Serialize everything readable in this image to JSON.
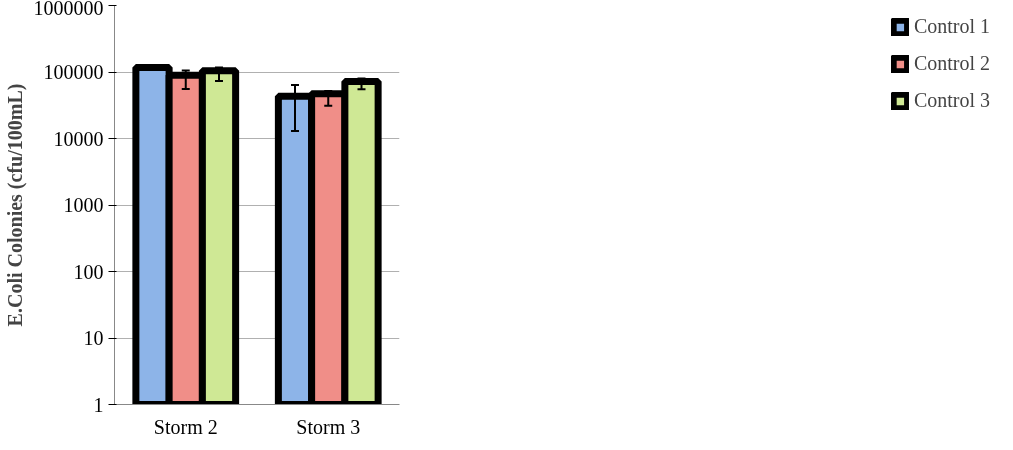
{
  "chart_data": {
    "type": "bar",
    "ylabel": "E.Coli Colonies (cfu/100mL)",
    "categories": [
      "Storm 2",
      "Storm 3"
    ],
    "series": [
      {
        "name": "Control 1",
        "color": "#8db4e8",
        "values": [
          117000,
          43000
        ],
        "errors": [
          [
            110000,
            124000
          ],
          [
            13000,
            63500
          ]
        ]
      },
      {
        "name": "Control 2",
        "color": "#f08e88",
        "values": [
          89000,
          47000
        ],
        "errors": [
          [
            55500,
            105000
          ],
          [
            31000,
            52000
          ]
        ]
      },
      {
        "name": "Control 3",
        "color": "#cfe895",
        "values": [
          104000,
          72000
        ],
        "errors": [
          [
            73000,
            117000
          ],
          [
            55000,
            80000
          ]
        ]
      }
    ],
    "log": "y",
    "ylim": [
      1,
      1000000
    ],
    "yticks": [
      1,
      10,
      100,
      1000,
      10000,
      100000,
      1000000
    ],
    "grid": "y",
    "legend": "right"
  }
}
